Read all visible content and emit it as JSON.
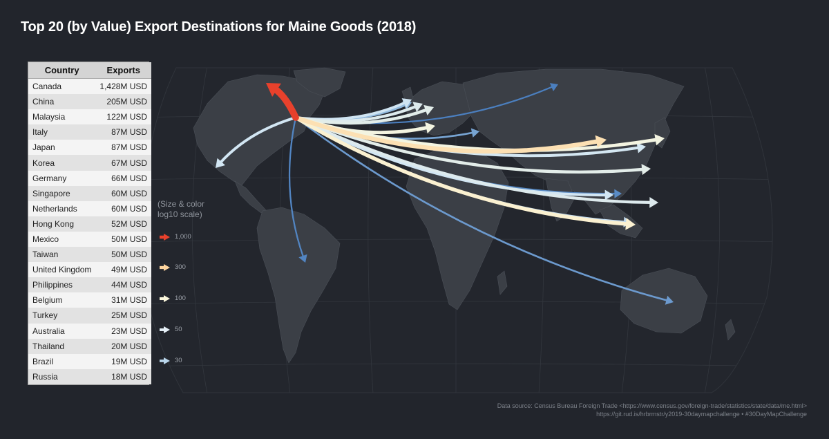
{
  "title": "Top 20 (by Value) Export Destinations for Maine Goods (2018)",
  "table": {
    "headers": [
      "Country",
      "Exports"
    ],
    "rows": [
      {
        "country": "Canada",
        "exports": "1,428M USD"
      },
      {
        "country": "China",
        "exports": "205M USD"
      },
      {
        "country": "Malaysia",
        "exports": "122M USD"
      },
      {
        "country": "Italy",
        "exports": "87M USD"
      },
      {
        "country": "Japan",
        "exports": "87M USD"
      },
      {
        "country": "Korea",
        "exports": "67M USD"
      },
      {
        "country": "Germany",
        "exports": "66M USD"
      },
      {
        "country": "Singapore",
        "exports": "60M USD"
      },
      {
        "country": "Netherlands",
        "exports": "60M USD"
      },
      {
        "country": "Hong Kong",
        "exports": "52M USD"
      },
      {
        "country": "Mexico",
        "exports": "50M USD"
      },
      {
        "country": "Taiwan",
        "exports": "50M USD"
      },
      {
        "country": "United Kingdom",
        "exports": "49M USD"
      },
      {
        "country": "Philippines",
        "exports": "44M USD"
      },
      {
        "country": "Belgium",
        "exports": "31M USD"
      },
      {
        "country": "Turkey",
        "exports": "25M USD"
      },
      {
        "country": "Australia",
        "exports": "23M USD"
      },
      {
        "country": "Thailand",
        "exports": "20M USD"
      },
      {
        "country": "Brazil",
        "exports": "19M USD"
      },
      {
        "country": "Russia",
        "exports": "18M USD"
      }
    ]
  },
  "legend": {
    "title": "(Size & color log10 scale)",
    "items": [
      {
        "label": "1,000",
        "value": 1000,
        "color": "#e8412c"
      },
      {
        "label": "300",
        "value": 300,
        "color": "#fdd49e"
      },
      {
        "label": "100",
        "value": 100,
        "color": "#fbf7dc"
      },
      {
        "label": "50",
        "value": 50,
        "color": "#e6f0f7"
      },
      {
        "label": "30",
        "value": 30,
        "color": "#b9d5ea"
      }
    ]
  },
  "source": {
    "line1": "Data source: Census Bureau Foreign Trade <https://www.census.gov/foreign-trade/statistics/state/data/me.html>",
    "line2": "https://git.rud.is/hrbrmstr/y2019-30daymapchallenge • #30DayMapChallenge"
  },
  "colors": {
    "background": "#22252c",
    "land": "#3b3f46",
    "graticule": "#33373e",
    "scale_low": "#4b7fbf",
    "scale_high": "#e8412c"
  },
  "chart_data": {
    "type": "flow-map",
    "title": "Top 20 (by Value) Export Destinations for Maine Goods (2018)",
    "origin": "Maine",
    "units": "M USD",
    "scale": "log10",
    "flows": [
      {
        "dest": "Canada",
        "value": 1428
      },
      {
        "dest": "China",
        "value": 205
      },
      {
        "dest": "Malaysia",
        "value": 122
      },
      {
        "dest": "Italy",
        "value": 87
      },
      {
        "dest": "Japan",
        "value": 87
      },
      {
        "dest": "Korea",
        "value": 67
      },
      {
        "dest": "Germany",
        "value": 66
      },
      {
        "dest": "Singapore",
        "value": 60
      },
      {
        "dest": "Netherlands",
        "value": 60
      },
      {
        "dest": "Hong Kong",
        "value": 52
      },
      {
        "dest": "Mexico",
        "value": 50
      },
      {
        "dest": "Taiwan",
        "value": 50
      },
      {
        "dest": "United Kingdom",
        "value": 49
      },
      {
        "dest": "Philippines",
        "value": 44
      },
      {
        "dest": "Belgium",
        "value": 31
      },
      {
        "dest": "Turkey",
        "value": 25
      },
      {
        "dest": "Australia",
        "value": 23
      },
      {
        "dest": "Thailand",
        "value": 20
      },
      {
        "dest": "Brazil",
        "value": 19
      },
      {
        "dest": "Russia",
        "value": 18
      }
    ],
    "legend_values": [
      1000,
      300,
      100,
      50,
      30
    ]
  }
}
